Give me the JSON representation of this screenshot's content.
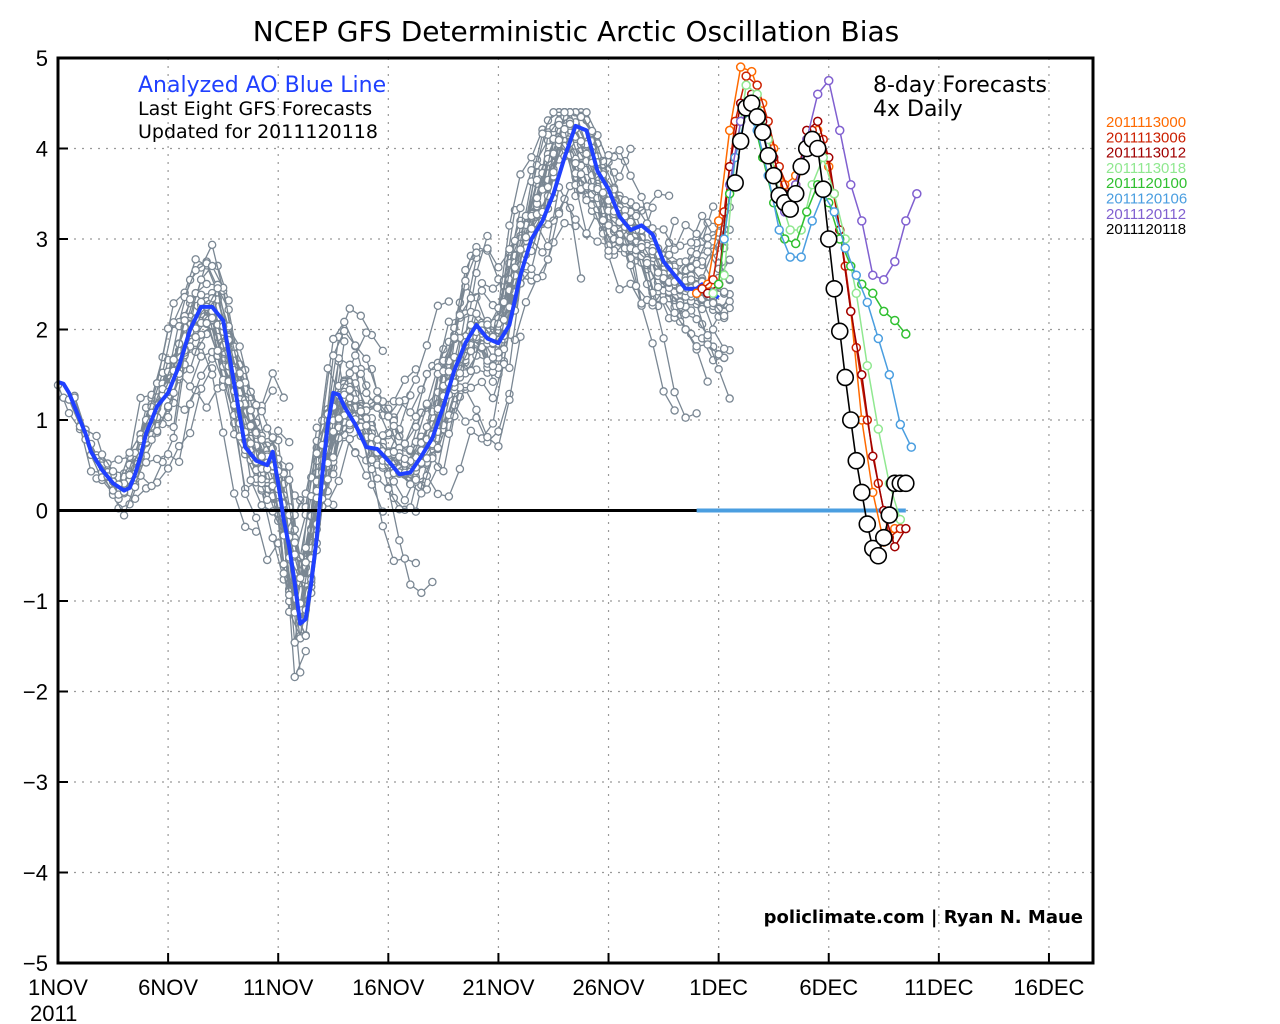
{
  "chart_data": {
    "type": "line",
    "title": "NCEP GFS Deterministic Arctic Oscillation Bias",
    "annotations": {
      "analyzed": "Analyzed AO Blue Line",
      "last_eight": "Last Eight GFS Forecasts",
      "updated": "Updated for 2011120118",
      "forecast_days": "8-day Forecasts",
      "frequency": "4x Daily",
      "credit": "policlimate.com | Ryan N. Maue"
    },
    "x_tick_labels": [
      "1NOV",
      "6NOV",
      "11NOV",
      "16NOV",
      "21NOV",
      "26NOV",
      "1DEC",
      "6DEC",
      "11DEC",
      "16DEC"
    ],
    "x_tick_days": [
      0,
      5,
      10,
      15,
      20,
      25,
      30,
      35,
      40,
      45
    ],
    "x_year_label": "2011",
    "xlim": [
      "2011-11-01",
      "2011-12-18"
    ],
    "ylim": [
      -5,
      5
    ],
    "y_ticks": [
      "5",
      "4",
      "3",
      "2",
      "1",
      "0",
      "−1",
      "−2",
      "−3",
      "−4",
      "−5"
    ],
    "y_tick_values": [
      5,
      4,
      3,
      2,
      1,
      0,
      -1,
      -2,
      -3,
      -4,
      -5
    ],
    "grid": true,
    "legend_placement": "right, outside plot",
    "colors": {
      "analyzed": "#2040ff",
      "history": "#7a8793",
      "zero_line": "#000000",
      "forecast_zero": "#4a9ee0"
    },
    "analyzed_ao": {
      "x_days": [
        0,
        0.25,
        0.5,
        0.75,
        1,
        1.25,
        1.5,
        2,
        2.5,
        3,
        3.25,
        3.5,
        3.75,
        4,
        4.25,
        4.5,
        5,
        5.5,
        6,
        6.5,
        7,
        7.5,
        8,
        8.5,
        9,
        9.5,
        9.75,
        10,
        10.25,
        10.5,
        10.75,
        11,
        11.25,
        11.5,
        11.75,
        12,
        12.25,
        12.5,
        12.75,
        13,
        13.5,
        14,
        14.5,
        15,
        15.5,
        16,
        16.5,
        17,
        17.5,
        18,
        18.5,
        19,
        19.5,
        20,
        20.5,
        21,
        21.5,
        22,
        22.5,
        23,
        23.5,
        24,
        24.5,
        25,
        25.5,
        26,
        26.5,
        27,
        27.5,
        28,
        28.5,
        29,
        29.25,
        29.5,
        29.75,
        30
      ],
      "values": [
        1.42,
        1.4,
        1.3,
        1.15,
        1.0,
        0.85,
        0.65,
        0.45,
        0.3,
        0.22,
        0.25,
        0.4,
        0.6,
        0.85,
        1.0,
        1.15,
        1.3,
        1.6,
        2.0,
        2.25,
        2.25,
        2.1,
        1.4,
        0.7,
        0.55,
        0.5,
        0.65,
        0.3,
        -0.1,
        -0.4,
        -0.8,
        -1.25,
        -1.2,
        -0.8,
        -0.3,
        0.4,
        0.95,
        1.3,
        1.28,
        1.15,
        0.95,
        0.7,
        0.68,
        0.55,
        0.4,
        0.42,
        0.6,
        0.8,
        1.15,
        1.55,
        1.85,
        2.05,
        1.9,
        1.85,
        2.05,
        2.6,
        3.0,
        3.2,
        3.5,
        3.9,
        4.25,
        4.2,
        3.75,
        3.55,
        3.25,
        3.1,
        3.15,
        3.05,
        2.75,
        2.6,
        2.45,
        2.45,
        2.5,
        2.45,
        2.4,
        2.35
      ]
    },
    "zero_line_x_days": [
      0,
      30
    ],
    "forecast_zero_x_days": [
      29,
      38.5
    ],
    "history_anchors": {
      "x_days": [
        0,
        1,
        2,
        3,
        4,
        5,
        6,
        7,
        8,
        9,
        10,
        11,
        12,
        13,
        14,
        15,
        16,
        17,
        18,
        19,
        20,
        21,
        22,
        23,
        24,
        25,
        26,
        27,
        28,
        29,
        30
      ],
      "values": [
        1.4,
        1.0,
        0.45,
        0.22,
        0.85,
        1.3,
        2.0,
        2.25,
        1.4,
        0.55,
        0.3,
        -1.25,
        0.4,
        1.28,
        0.95,
        0.55,
        0.42,
        0.8,
        1.55,
        2.05,
        1.85,
        3.0,
        3.5,
        4.25,
        3.75,
        3.25,
        3.15,
        2.75,
        2.45,
        2.45,
        2.35
      ]
    },
    "series": [
      {
        "name": "2011113000",
        "color": "#ff6a00",
        "x_days": [
          29,
          29.5,
          30,
          30.5,
          31,
          31.5,
          32,
          32.5,
          33,
          33.5,
          34,
          34.5,
          35,
          35.5,
          36,
          36.5,
          37,
          37.5,
          38
        ],
        "values": [
          2.4,
          2.5,
          3.2,
          4.2,
          4.9,
          4.85,
          4.5,
          4.0,
          3.6,
          3.7,
          4.1,
          4.2,
          3.8,
          3.1,
          2.2,
          1.0,
          0.2,
          -0.35,
          -0.2
        ]
      },
      {
        "name": "2011113006",
        "color": "#cc2000",
        "x_days": [
          29.25,
          29.75,
          30.25,
          30.75,
          31.25,
          31.75,
          32.25,
          32.75,
          33.25,
          33.75,
          34.25,
          34.75,
          35.25,
          35.75,
          36.25,
          36.75,
          37.25,
          37.75,
          38.25
        ],
        "values": [
          2.45,
          2.55,
          3.3,
          4.3,
          4.8,
          4.7,
          4.3,
          3.8,
          3.5,
          3.8,
          4.2,
          4.1,
          3.5,
          2.7,
          1.8,
          1.0,
          0.3,
          -0.3,
          -0.2
        ]
      },
      {
        "name": "2011113012",
        "color": "#a00000",
        "x_days": [
          29.5,
          30,
          30.5,
          31,
          31.5,
          32,
          32.5,
          33,
          33.5,
          34,
          34.5,
          35,
          35.5,
          36,
          36.5,
          37,
          37.5,
          38,
          38.5
        ],
        "values": [
          2.4,
          2.5,
          3.8,
          4.5,
          4.6,
          4.3,
          3.9,
          3.5,
          3.6,
          4.2,
          4.3,
          3.9,
          3.1,
          2.2,
          1.5,
          0.6,
          0.0,
          -0.4,
          -0.2
        ]
      },
      {
        "name": "2011113018",
        "color": "#90e890",
        "x_days": [
          29.75,
          30.25,
          30.75,
          31.25,
          31.75,
          32.25,
          32.75,
          33.25,
          33.75,
          34.25,
          34.75,
          35.25,
          35.75,
          36.25,
          36.75,
          37.25,
          37.75,
          38.25
        ],
        "values": [
          2.4,
          2.6,
          3.9,
          4.7,
          4.6,
          4.1,
          3.5,
          3.1,
          3.1,
          3.6,
          3.9,
          3.5,
          3.0,
          2.4,
          1.6,
          0.9,
          0.3,
          -0.1
        ]
      },
      {
        "name": "2011120100",
        "color": "#30c030",
        "x_days": [
          30,
          30.5,
          31,
          31.5,
          32,
          32.5,
          33,
          33.5,
          34,
          34.5,
          35,
          35.5,
          36,
          36.5,
          37,
          37.5,
          38,
          38.5
        ],
        "values": [
          2.5,
          3.5,
          4.3,
          4.4,
          3.9,
          3.4,
          3.0,
          2.95,
          3.3,
          3.6,
          3.4,
          3.0,
          2.7,
          2.5,
          2.4,
          2.2,
          2.1,
          1.95
        ]
      },
      {
        "name": "2011120106",
        "color": "#4a9ee0",
        "x_days": [
          30.25,
          30.75,
          31.25,
          31.75,
          32.25,
          32.75,
          33.25,
          33.75,
          34.25,
          34.75,
          35.25,
          35.75,
          36.25,
          36.75,
          37.25,
          37.75,
          38.25,
          38.75
        ],
        "values": [
          3.0,
          3.9,
          4.4,
          4.2,
          3.7,
          3.1,
          2.8,
          2.8,
          3.2,
          3.5,
          3.3,
          2.9,
          2.6,
          2.3,
          1.9,
          1.5,
          0.95,
          0.7
        ]
      },
      {
        "name": "2011120112",
        "color": "#8060d0",
        "x_days": [
          30.5,
          31,
          31.5,
          32,
          32.5,
          33,
          33.5,
          34,
          34.5,
          35,
          35.5,
          36,
          36.5,
          37,
          37.5,
          38,
          38.5,
          39
        ],
        "values": [
          3.6,
          4.3,
          4.5,
          4.2,
          3.7,
          3.3,
          3.6,
          4.1,
          4.6,
          4.75,
          4.2,
          3.6,
          3.2,
          2.6,
          2.55,
          2.75,
          3.2,
          3.5
        ]
      },
      {
        "name": "2011120118",
        "color": "#000000",
        "x_days": [
          30.75,
          31,
          31.25,
          31.5,
          31.75,
          32,
          32.25,
          32.5,
          32.75,
          33,
          33.25,
          33.5,
          33.75,
          34,
          34.25,
          34.5,
          34.75,
          35,
          35.25,
          35.5,
          35.75,
          36,
          36.25,
          36.5,
          36.75,
          37,
          37.25,
          37.5,
          37.75,
          38,
          38.25,
          38.5
        ],
        "values": [
          3.62,
          4.08,
          4.45,
          4.5,
          4.35,
          4.18,
          3.92,
          3.7,
          3.48,
          3.4,
          3.33,
          3.5,
          3.8,
          4.0,
          4.1,
          4.0,
          3.55,
          3.0,
          2.45,
          1.98,
          1.47,
          1.0,
          0.55,
          0.2,
          -0.15,
          -0.42,
          -0.5,
          -0.3,
          -0.05,
          0.3,
          0.3,
          0.3
        ]
      }
    ]
  }
}
